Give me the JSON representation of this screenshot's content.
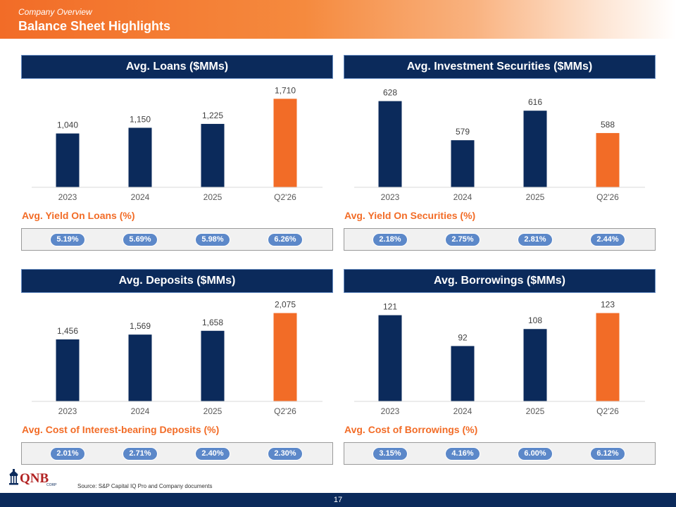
{
  "header": {
    "subtitle": "Company Overview",
    "title": "Balance Sheet Highlights"
  },
  "panels": [
    {
      "title": "Avg. Loans ($MMs)",
      "metric_title": "Avg. Yield On Loans (%)",
      "pills": [
        "5.19%",
        "5.69%",
        "5.98%",
        "6.26%"
      ]
    },
    {
      "title": "Avg. Investment Securities ($MMs)",
      "metric_title": "Avg. Yield On Securities (%)",
      "pills": [
        "2.18%",
        "2.75%",
        "2.81%",
        "2.44%"
      ]
    },
    {
      "title": "Avg. Deposits ($MMs)",
      "metric_title": "Avg. Cost of Interest-bearing Deposits (%)",
      "pills": [
        "2.01%",
        "2.71%",
        "2.40%",
        "2.30%"
      ]
    },
    {
      "title": "Avg. Borrowings ($MMs)",
      "metric_title": "Avg. Cost of Borrowings (%)",
      "pills": [
        "3.15%",
        "4.16%",
        "6.00%",
        "6.12%"
      ]
    }
  ],
  "chart_data": [
    {
      "type": "bar",
      "title": "Avg. Loans ($MMs)",
      "categories": [
        "2023",
        "2024",
        "2025",
        "Q2'26"
      ],
      "values": [
        1040,
        1150,
        1225,
        1710
      ],
      "labels": [
        "1,040",
        "1,150",
        "1,225",
        "1,710"
      ],
      "ylim": [
        0,
        1850
      ],
      "grid": false
    },
    {
      "type": "bar",
      "title": "Avg. Investment Securities ($MMs)",
      "categories": [
        "2023",
        "2024",
        "2025",
        "Q2'26"
      ],
      "values": [
        628,
        579,
        616,
        588
      ],
      "labels": [
        "628",
        "579",
        "616",
        "588"
      ],
      "ylim": [
        520,
        640
      ],
      "grid": false
    },
    {
      "type": "bar",
      "title": "Avg. Deposits ($MMs)",
      "categories": [
        "2023",
        "2024",
        "2025",
        "Q2'26"
      ],
      "values": [
        1456,
        1569,
        1658,
        2075
      ],
      "labels": [
        "1,456",
        "1,569",
        "1,658",
        "2,075"
      ],
      "ylim": [
        0,
        2250
      ],
      "grid": false
    },
    {
      "type": "bar",
      "title": "Avg. Borrowings ($MMs)",
      "categories": [
        "2023",
        "2024",
        "2025",
        "Q2'26"
      ],
      "values": [
        121,
        92,
        108,
        123
      ],
      "labels": [
        "121",
        "92",
        "108",
        "123"
      ],
      "ylim": [
        40,
        130
      ],
      "grid": false
    }
  ],
  "colors": {
    "navy": "#0b2a5b",
    "orange": "#f26c27",
    "pill": "#5c88c9"
  },
  "footer": {
    "source": "Source: S&P Capital IQ Pro and Company documents",
    "page_number": "17"
  },
  "logo": {
    "text": "QNB",
    "sub": "CORP"
  }
}
